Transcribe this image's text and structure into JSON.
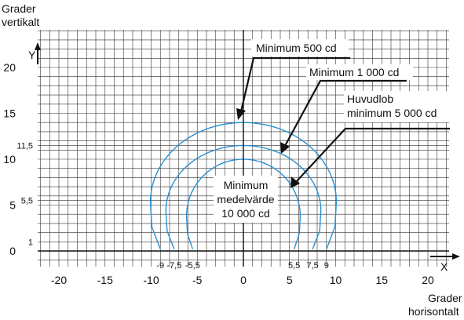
{
  "axes": {
    "y_title": [
      "Grader",
      "vertikalt"
    ],
    "x_title": [
      "Grader",
      "horisontalt"
    ],
    "y_letter": "Y",
    "x_letter": "X",
    "x_major_ticks": [
      -20,
      -15,
      -10,
      -5,
      0,
      5,
      10,
      15,
      20
    ],
    "y_major_ticks": [
      0,
      5,
      10,
      15,
      20
    ],
    "y_minor_labels": [
      {
        "value": 11.5,
        "text": "11,5"
      },
      {
        "value": 5.5,
        "text": "5,5"
      },
      {
        "value": 1,
        "text": "1"
      }
    ],
    "x_minor_labels_left": [
      "-9",
      "-7,5",
      "-5,5"
    ],
    "x_minor_labels_right": [
      "5,5",
      "7,5",
      "9"
    ],
    "x_minor_values": [
      -9,
      -7.5,
      -5.5,
      5.5,
      7.5,
      9
    ],
    "grid": true
  },
  "regions": [
    {
      "name": "Minimum 500 cd",
      "x_half_width": 9,
      "y_top": 14
    },
    {
      "name": "Minimum 1 000 cd",
      "x_half_width": 7.5,
      "y_top": 11.5
    },
    {
      "name": "Huvudlob minimum 5 000 cd",
      "x_half_width": 5.5,
      "y_top": 10
    }
  ],
  "callouts": {
    "c500": "Minimum 500 cd",
    "c1000": "Minimum 1 000 cd",
    "huvud": [
      "Huvudlob",
      "minimum 5 000 cd"
    ],
    "center": [
      "Minimum",
      "medelvärde",
      "10 000 cd"
    ]
  },
  "colors": {
    "curve": "#2a8fd0",
    "grid": "#333333",
    "ink": "#111111"
  }
}
